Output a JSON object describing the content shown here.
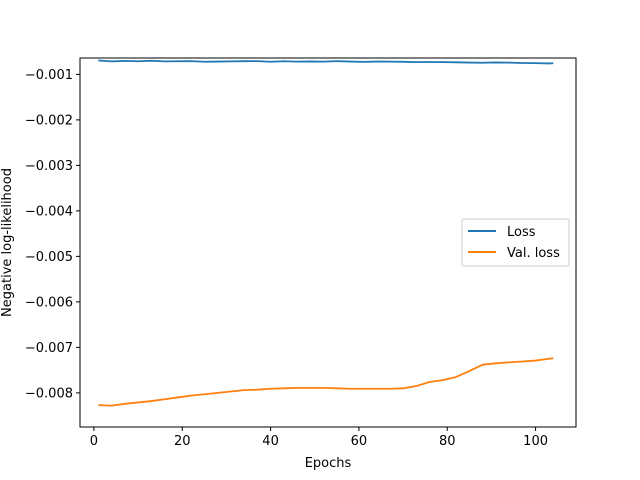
{
  "chart_data": {
    "type": "line",
    "title": "",
    "xlabel": "Epochs",
    "ylabel": "Negative log-likelihood",
    "xlim": [
      -3.15,
      109.15
    ],
    "ylim": [
      -0.00875,
      -0.00064
    ],
    "xticks": [
      0,
      20,
      40,
      60,
      80,
      100
    ],
    "xtick_labels": [
      "0",
      "20",
      "40",
      "60",
      "80",
      "100"
    ],
    "yticks": [
      -0.008,
      -0.007,
      -0.006,
      -0.005,
      -0.004,
      -0.003,
      -0.002,
      -0.001
    ],
    "ytick_labels": [
      "−0.008",
      "−0.007",
      "−0.006",
      "−0.005",
      "−0.004",
      "−0.003",
      "−0.002",
      "−0.001"
    ],
    "grid": false,
    "legend_position": "center-right",
    "x": [
      1,
      4,
      7,
      10,
      13,
      16,
      19,
      22,
      25,
      28,
      31,
      34,
      37,
      40,
      43,
      46,
      49,
      52,
      55,
      58,
      61,
      64,
      67,
      70,
      73,
      76,
      79,
      82,
      85,
      88,
      91,
      94,
      97,
      100,
      103,
      104
    ],
    "series": [
      {
        "name": "Loss",
        "color": "#1f77b4",
        "values": [
          -0.000695,
          -0.000715,
          -0.000705,
          -0.000712,
          -0.0007,
          -0.000714,
          -0.000712,
          -0.000708,
          -0.000722,
          -0.000718,
          -0.000715,
          -0.00071,
          -0.000708,
          -0.000722,
          -0.000712,
          -0.00072,
          -0.000716,
          -0.00072,
          -0.000708,
          -0.000718,
          -0.000725,
          -0.000718,
          -0.00072,
          -0.000724,
          -0.00073,
          -0.000728,
          -0.00073,
          -0.000735,
          -0.00074,
          -0.000745,
          -0.000738,
          -0.000742,
          -0.00075,
          -0.000752,
          -0.00076,
          -0.000755
        ]
      },
      {
        "name": "Val. loss",
        "color": "#ff7f0e",
        "values": [
          -0.00827,
          -0.00828,
          -0.00824,
          -0.00821,
          -0.00818,
          -0.00814,
          -0.0081,
          -0.00806,
          -0.00803,
          -0.008,
          -0.00797,
          -0.00794,
          -0.00793,
          -0.00791,
          -0.0079,
          -0.00789,
          -0.00789,
          -0.00789,
          -0.0079,
          -0.00791,
          -0.00791,
          -0.00791,
          -0.00791,
          -0.0079,
          -0.00785,
          -0.00776,
          -0.00772,
          -0.00765,
          -0.00752,
          -0.00738,
          -0.00735,
          -0.00733,
          -0.00731,
          -0.00729,
          -0.00725,
          -0.00724
        ]
      }
    ]
  }
}
